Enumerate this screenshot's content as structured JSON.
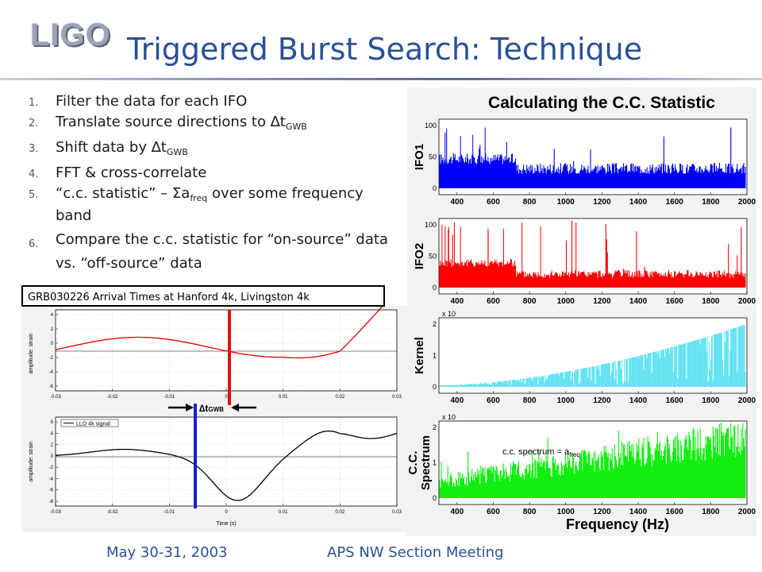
{
  "header": {
    "logo": "LIGO",
    "title": "Triggered Burst Search: Technique"
  },
  "steps": [
    {
      "num": "1.",
      "text": "Filter the data for each IFO"
    },
    {
      "num": "2.",
      "text": "Translate source directions to ∆t",
      "sub": "GWB"
    },
    {
      "num": "3.",
      "text": "Shift data by ∆t",
      "sub": "GWB"
    },
    {
      "num": "4.",
      "text": "FFT & cross-correlate"
    },
    {
      "num": "5.",
      "text_a": "“c.c. statistic” – Σa",
      "sub": "freq",
      "text_b": " over some frequency band"
    },
    {
      "num": "6.",
      "text": "Compare the c.c. statistic for “on-source” data vs. “off-source” data"
    }
  ],
  "grb_figure": {
    "caption": "GRB030226 Arrival Times at Hanford 4k, Livingston 4k",
    "x_ticks": [
      "-0.03",
      "-0.02",
      "-0.01",
      "0",
      "0.01",
      "0.02",
      "0.03"
    ],
    "top_y_ticks": [
      "4",
      "2",
      "0",
      "-2",
      "-4",
      "-6"
    ],
    "bottom_y_ticks": [
      "6",
      "4",
      "2",
      "0",
      "-2",
      "-4",
      "-6",
      "-8"
    ],
    "y_label": "amplitude: strain",
    "x_label": "Time (s)",
    "legend": "LLO 4k signal",
    "delta_label": "∆t",
    "delta_sub": "GWB"
  },
  "cc_figure": {
    "title": "Calculating the C.C. Statistic",
    "x_ticks": [
      "400",
      "600",
      "800",
      "1000",
      "1200",
      "1400",
      "1600",
      "1800",
      "2000"
    ],
    "x_label": "Frequency (Hz)",
    "panels": [
      {
        "label": "IFO1",
        "y_ticks": [
          "100",
          "50",
          "0"
        ],
        "color": "#0000ff"
      },
      {
        "label": "IFO2",
        "y_ticks": [
          "100",
          "50",
          "0"
        ],
        "color": "#ff0000"
      },
      {
        "label": "Kernel",
        "y_ticks": [
          "2",
          "1",
          "0"
        ],
        "exponent": "x 10",
        "color": "#55e0f0"
      },
      {
        "label_1": "C.C.",
        "label_2": "Spectrum",
        "y_ticks": [
          "2",
          "1",
          "0"
        ],
        "exponent": "x 10",
        "color": "#11ee11"
      }
    ],
    "annotation": "c.c. spectrum = a",
    "annotation_sub": "freq"
  },
  "footer": {
    "date": "May 30-31, 2003",
    "meeting": "APS NW Section Meeting"
  }
}
